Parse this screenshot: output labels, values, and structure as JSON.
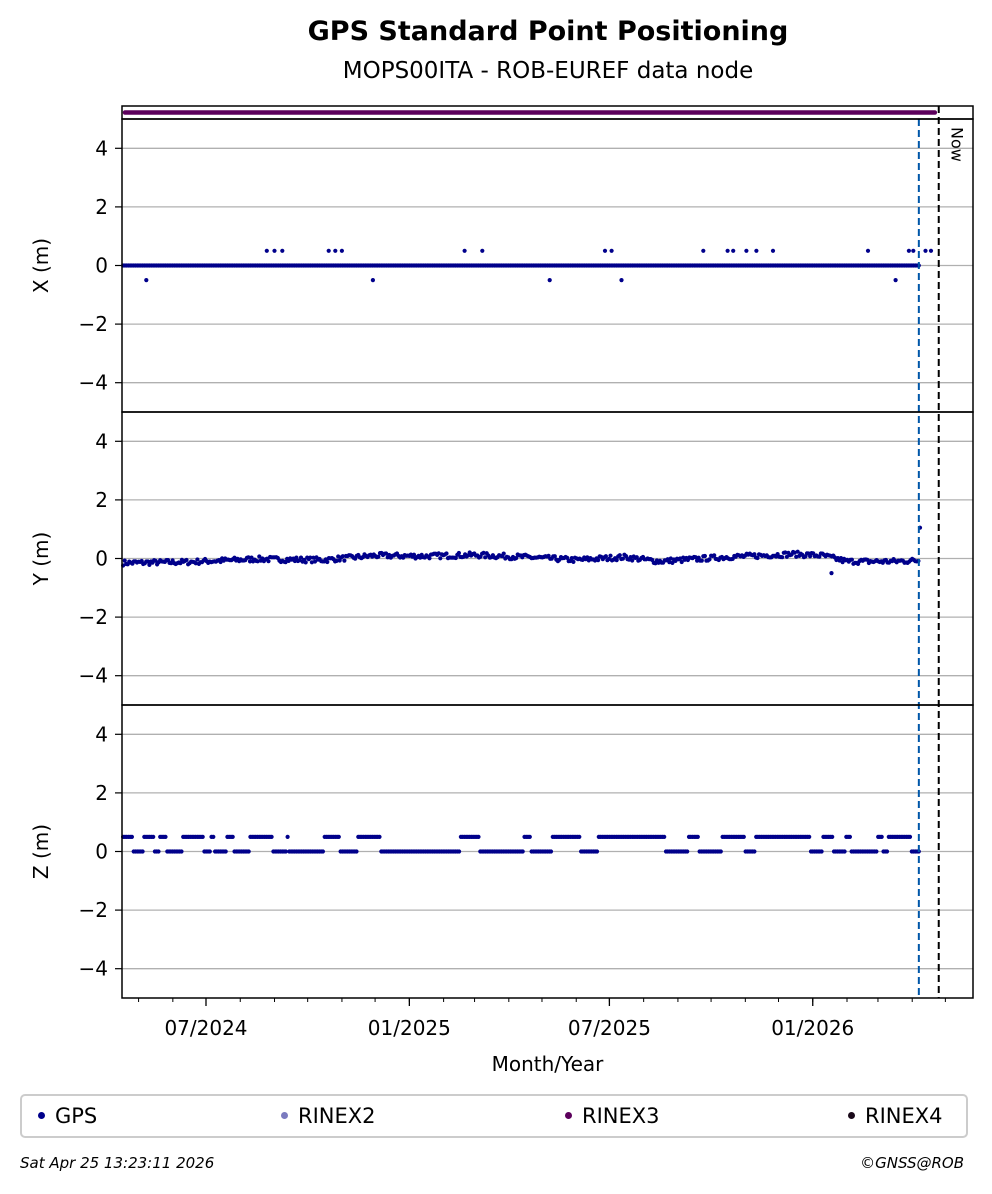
{
  "title": "GPS Standard Point Positioning",
  "subtitle": "MOPS00ITA - ROB-EUREF data node",
  "chart_data": {
    "type": "scatter",
    "xlabel": "Month/Year",
    "x_range": [
      "2024-04-16",
      "2026-05-26"
    ],
    "x_ticks": [
      "07/2024",
      "01/2025",
      "07/2025",
      "01/2026"
    ],
    "y_ticks": [
      -4,
      -2,
      0,
      2,
      4
    ],
    "now_label": "Now",
    "now_date": "2026-04-25",
    "last_obs_date": "2026-04-07",
    "grid": true,
    "legend_placement": "bottom",
    "panels": [
      {
        "ylabel": "X (m)",
        "ylim": [
          -5,
          5
        ],
        "baseline": 0,
        "outliers": [
          [
            "2024-05-08",
            -0.5
          ],
          [
            "2024-08-25",
            0.5
          ],
          [
            "2024-09-01",
            0.5
          ],
          [
            "2024-09-08",
            0.5
          ],
          [
            "2024-10-20",
            0.5
          ],
          [
            "2024-10-26",
            0.5
          ],
          [
            "2024-11-01",
            0.5
          ],
          [
            "2024-11-29",
            -0.5
          ],
          [
            "2025-02-20",
            0.5
          ],
          [
            "2025-03-08",
            0.5
          ],
          [
            "2025-05-08",
            -0.5
          ],
          [
            "2025-07-12",
            -0.5
          ],
          [
            "2025-06-27",
            0.5
          ],
          [
            "2025-07-03",
            0.5
          ],
          [
            "2025-09-24",
            0.5
          ],
          [
            "2025-10-16",
            0.5
          ],
          [
            "2025-10-21",
            0.5
          ],
          [
            "2025-11-02",
            0.5
          ],
          [
            "2025-11-11",
            0.5
          ],
          [
            "2025-11-26",
            0.5
          ],
          [
            "2026-02-20",
            0.5
          ],
          [
            "2026-03-17",
            -0.5
          ],
          [
            "2026-03-29",
            0.5
          ],
          [
            "2026-04-02",
            0.5
          ],
          [
            "2026-04-13",
            0.5
          ],
          [
            "2026-04-18",
            0.5
          ]
        ]
      },
      {
        "ylabel": "Y (m)",
        "ylim": [
          -5,
          5
        ],
        "trend": [
          [
            "2024-04-16",
            -0.15
          ],
          [
            "2024-06-15",
            -0.12
          ],
          [
            "2024-08-15",
            -0.02
          ],
          [
            "2024-10-15",
            -0.05
          ],
          [
            "2024-12-01",
            0.1
          ],
          [
            "2025-01-15",
            0.08
          ],
          [
            "2025-03-01",
            0.12
          ],
          [
            "2025-04-15",
            0.05
          ],
          [
            "2025-06-01",
            -0.05
          ],
          [
            "2025-07-15",
            0.05
          ],
          [
            "2025-08-15",
            -0.1
          ],
          [
            "2025-10-15",
            0.05
          ],
          [
            "2025-12-15",
            0.15
          ],
          [
            "2026-01-10",
            0.1
          ],
          [
            "2026-02-01",
            -0.1
          ],
          [
            "2026-03-15",
            -0.1
          ],
          [
            "2026-04-20",
            -0.05
          ]
        ],
        "outliers": [
          [
            "2026-01-18",
            -0.5
          ],
          [
            "2026-04-08",
            1.05
          ]
        ]
      },
      {
        "ylabel": "Z (m)",
        "ylim": [
          -5,
          5
        ],
        "baseline": 0,
        "upper_level": 0.5,
        "upper_segments": [
          [
            "2024-04-16",
            "2024-04-25"
          ],
          [
            "2024-05-05",
            "2024-05-15"
          ],
          [
            "2024-05-20",
            "2024-05-26"
          ],
          [
            "2024-06-10",
            "2024-06-28"
          ],
          [
            "2024-07-05",
            "2024-07-08"
          ],
          [
            "2024-07-20",
            "2024-07-26"
          ],
          [
            "2024-08-10",
            "2024-08-30"
          ],
          [
            "2024-09-12",
            "2024-09-14"
          ],
          [
            "2024-10-15",
            "2024-10-30"
          ],
          [
            "2024-11-15",
            "2024-12-05"
          ],
          [
            "2025-02-15",
            "2025-03-05"
          ],
          [
            "2025-04-15",
            "2025-04-20"
          ],
          [
            "2025-05-10",
            "2025-06-05"
          ],
          [
            "2025-06-20",
            "2025-08-20"
          ],
          [
            "2025-09-10",
            "2025-09-20"
          ],
          [
            "2025-10-10",
            "2025-11-01"
          ],
          [
            "2025-11-10",
            "2025-12-30"
          ],
          [
            "2026-01-10",
            "2026-01-20"
          ],
          [
            "2026-01-30",
            "2026-02-05"
          ],
          [
            "2026-02-28",
            "2026-03-05"
          ],
          [
            "2026-03-10",
            "2026-03-30"
          ],
          [
            "2026-04-10",
            "2026-04-25"
          ]
        ]
      }
    ]
  },
  "legend": [
    {
      "label": "GPS",
      "color": "#00008b"
    },
    {
      "label": "RINEX2",
      "color": "#7b7bbf"
    },
    {
      "label": "RINEX3",
      "color": "#5c005c"
    },
    {
      "label": "RINEX4",
      "color": "#1a0a1a"
    }
  ],
  "footer": {
    "timestamp": "Sat Apr 25 13:23:11 2026",
    "credit": "©GNSS@ROB"
  },
  "colors": {
    "gps_points": "#00008b",
    "rinex3_bar": "#5c005c",
    "last_obs_line": "#0057a8",
    "now_line": "#000000",
    "grid": "#b0b0b0"
  }
}
